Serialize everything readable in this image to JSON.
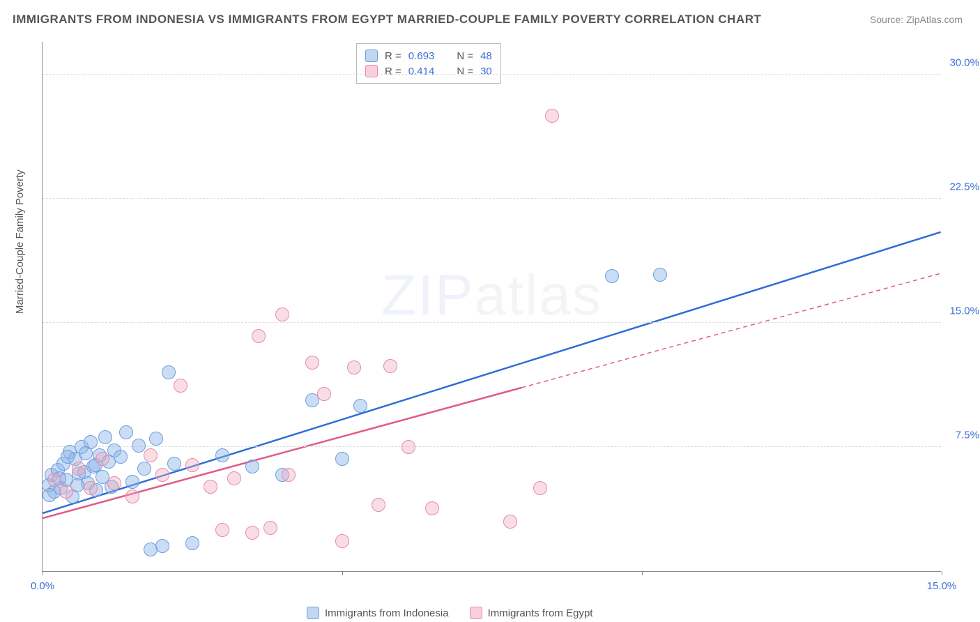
{
  "title": "IMMIGRANTS FROM INDONESIA VS IMMIGRANTS FROM EGYPT MARRIED-COUPLE FAMILY POVERTY CORRELATION CHART",
  "source": "Source: ZipAtlas.com",
  "ylabel": "Married-Couple Family Poverty",
  "watermark_bold": "ZIP",
  "watermark_thin": "atlas",
  "chart": {
    "type": "scatter",
    "background_color": "#ffffff",
    "grid_color": "#dddddd",
    "axis_color": "#888888",
    "xlim": [
      0,
      15
    ],
    "ylim": [
      0,
      32
    ],
    "xticks": [
      0,
      5,
      10,
      15
    ],
    "xtick_labels": {
      "0": "0.0%",
      "15": "15.0%"
    },
    "yticks": [
      7.5,
      15.0,
      22.5,
      30.0
    ],
    "ytick_labels": [
      "7.5%",
      "15.0%",
      "22.5%",
      "30.0%"
    ],
    "point_radius": 10,
    "series": [
      {
        "id": "a",
        "name": "Immigrants from Indonesia",
        "point_fill": "rgba(140,180,230,0.45)",
        "point_stroke": "#6b9fe0",
        "trend_color": "#2e6cd6",
        "trend_width": 2.5,
        "R": "0.693",
        "N": "48",
        "trend": {
          "x1": 0,
          "y1": 3.5,
          "x2": 15,
          "y2": 20.5,
          "dash": false,
          "solid_until": 15
        },
        "points": [
          [
            0.1,
            5.2
          ],
          [
            0.15,
            5.8
          ],
          [
            0.2,
            4.8
          ],
          [
            0.25,
            6.1
          ],
          [
            0.3,
            5.0
          ],
          [
            0.35,
            6.5
          ],
          [
            0.4,
            5.5
          ],
          [
            0.45,
            7.2
          ],
          [
            0.5,
            4.5
          ],
          [
            0.55,
            6.8
          ],
          [
            0.6,
            5.9
          ],
          [
            0.65,
            7.5
          ],
          [
            0.7,
            6.0
          ],
          [
            0.75,
            5.3
          ],
          [
            0.8,
            7.8
          ],
          [
            0.85,
            6.3
          ],
          [
            0.9,
            4.9
          ],
          [
            0.95,
            7.0
          ],
          [
            1.0,
            5.7
          ],
          [
            1.05,
            8.1
          ],
          [
            1.1,
            6.6
          ],
          [
            1.15,
            5.1
          ],
          [
            1.2,
            7.3
          ],
          [
            1.3,
            6.9
          ],
          [
            1.4,
            8.4
          ],
          [
            1.5,
            5.4
          ],
          [
            1.6,
            7.6
          ],
          [
            1.7,
            6.2
          ],
          [
            1.8,
            1.3
          ],
          [
            1.9,
            8.0
          ],
          [
            2.0,
            1.5
          ],
          [
            2.1,
            12.0
          ],
          [
            2.2,
            6.5
          ],
          [
            2.5,
            1.7
          ],
          [
            3.0,
            7.0
          ],
          [
            3.5,
            6.3
          ],
          [
            4.0,
            5.8
          ],
          [
            4.5,
            10.3
          ],
          [
            5.0,
            6.8
          ],
          [
            5.3,
            10.0
          ],
          [
            9.5,
            17.8
          ],
          [
            10.3,
            17.9
          ],
          [
            0.12,
            4.6
          ],
          [
            0.28,
            5.6
          ],
          [
            0.42,
            6.9
          ],
          [
            0.58,
            5.2
          ],
          [
            0.72,
            7.1
          ],
          [
            0.88,
            6.4
          ]
        ]
      },
      {
        "id": "b",
        "name": "Immigrants from Egypt",
        "point_fill": "rgba(240,170,190,0.40)",
        "point_stroke": "#e88aa8",
        "trend_color": "#e05b85",
        "trend_width": 2.5,
        "R": "0.414",
        "N": "30",
        "trend": {
          "x1": 0,
          "y1": 3.2,
          "x2": 15,
          "y2": 18.0,
          "dash": true,
          "solid_until": 8
        },
        "points": [
          [
            0.2,
            5.5
          ],
          [
            0.4,
            4.8
          ],
          [
            0.6,
            6.2
          ],
          [
            0.8,
            5.0
          ],
          [
            1.0,
            6.8
          ],
          [
            1.2,
            5.3
          ],
          [
            1.5,
            4.5
          ],
          [
            1.8,
            7.0
          ],
          [
            2.0,
            5.8
          ],
          [
            2.3,
            11.2
          ],
          [
            2.5,
            6.4
          ],
          [
            2.8,
            5.1
          ],
          [
            3.0,
            2.5
          ],
          [
            3.2,
            5.6
          ],
          [
            3.5,
            2.3
          ],
          [
            3.6,
            14.2
          ],
          [
            3.8,
            2.6
          ],
          [
            4.0,
            15.5
          ],
          [
            4.1,
            5.8
          ],
          [
            4.5,
            12.6
          ],
          [
            4.7,
            10.7
          ],
          [
            5.0,
            1.8
          ],
          [
            5.2,
            12.3
          ],
          [
            5.6,
            4.0
          ],
          [
            5.8,
            12.4
          ],
          [
            6.1,
            7.5
          ],
          [
            6.5,
            3.8
          ],
          [
            7.8,
            3.0
          ],
          [
            8.3,
            5.0
          ],
          [
            8.5,
            27.5
          ]
        ]
      }
    ],
    "stat_legend_label_R": "R =",
    "stat_legend_label_N": "N ="
  }
}
